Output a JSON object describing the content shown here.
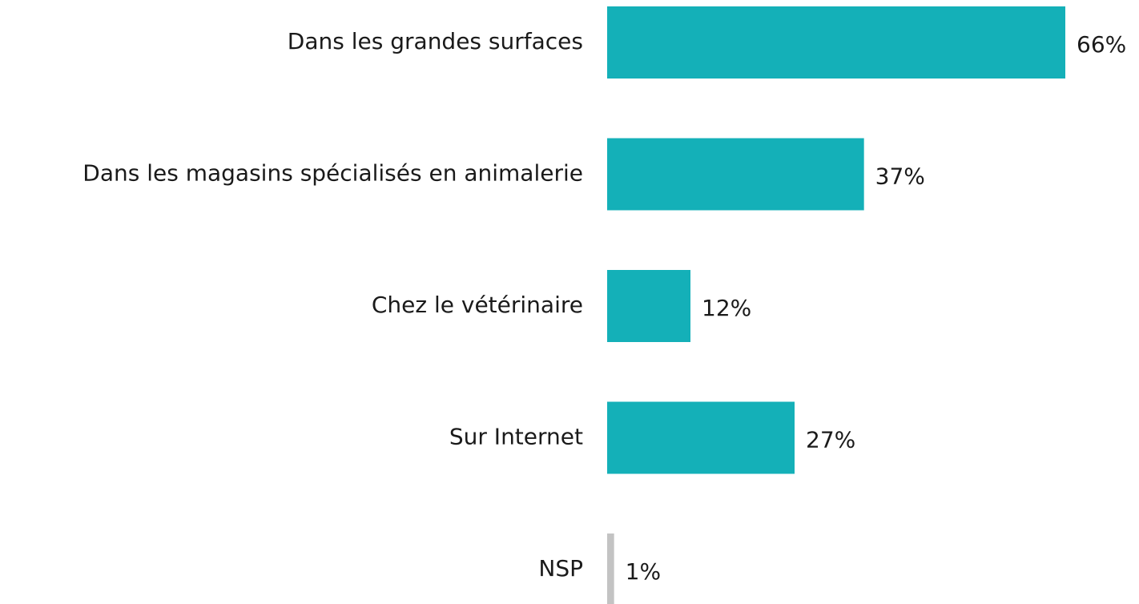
{
  "chart_data": {
    "type": "barh",
    "categories": [
      "Dans les grandes surfaces",
      "Dans les magasins spécialisés en animalerie",
      "Chez le vétérinaire",
      "Sur Internet",
      "NSP"
    ],
    "values": [
      66,
      37,
      12,
      27,
      1
    ],
    "value_labels": [
      "66%",
      "37%",
      "12%",
      "27%",
      "1%"
    ],
    "colors": [
      "#14b0b8",
      "#14b0b8",
      "#14b0b8",
      "#14b0b8",
      "#c3c3c3"
    ]
  }
}
